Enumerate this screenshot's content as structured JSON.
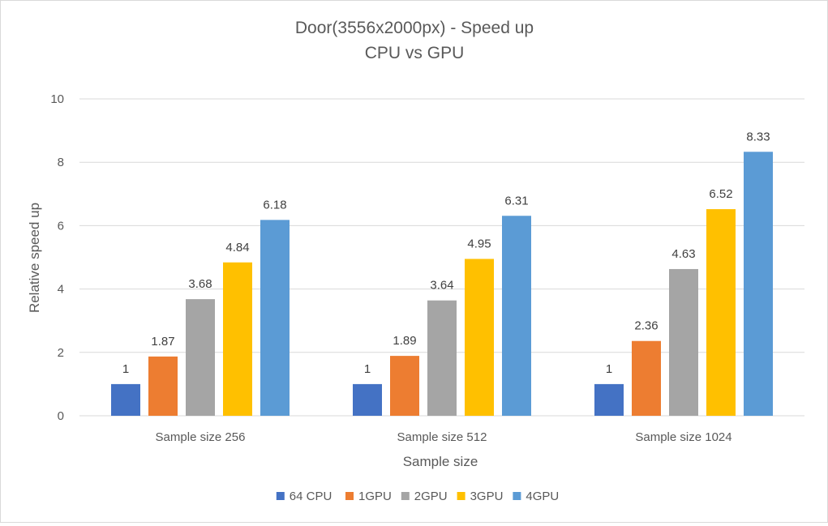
{
  "chart_data": {
    "type": "bar",
    "title": "Door(3556x2000px) - Speed up",
    "subtitle": "CPU vs GPU",
    "xlabel": "Sample size",
    "ylabel": "Relative speed up",
    "ylim": [
      0,
      10
    ],
    "yticks": [
      0,
      2,
      4,
      6,
      8,
      10
    ],
    "grid": true,
    "legend_position": "bottom",
    "categories": [
      "Sample size 256",
      "Sample size 512",
      "Sample size 1024"
    ],
    "series": [
      {
        "name": "64 CPU",
        "color": "#4472c4",
        "values": [
          1,
          1,
          1
        ]
      },
      {
        "name": "1GPU",
        "color": "#ed7d31",
        "values": [
          1.87,
          1.89,
          2.36
        ]
      },
      {
        "name": "2GPU",
        "color": "#a5a5a5",
        "values": [
          3.68,
          3.64,
          4.63
        ]
      },
      {
        "name": "3GPU",
        "color": "#ffc000",
        "values": [
          4.84,
          4.95,
          6.52
        ]
      },
      {
        "name": "4GPU",
        "color": "#5b9bd5",
        "values": [
          6.18,
          6.31,
          8.33
        ]
      }
    ]
  }
}
